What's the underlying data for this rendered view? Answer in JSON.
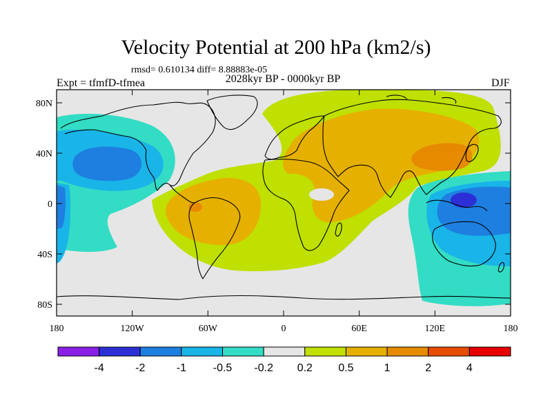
{
  "title": "Velocity Potential at 200 hPa (km2/s)",
  "stats_line": "rmsd= 0.610134 diff= 8.88883e-05",
  "left_label": "Expt = tfmfD-tfmea",
  "center_label": "2028kyr BP - 0000kyr BP",
  "right_label": "DJF",
  "x_ticks": [
    "180",
    "120W",
    "60W",
    "0",
    "60E",
    "120E",
    "180"
  ],
  "y_ticks": [
    "80N",
    "40N",
    "0",
    "40S",
    "80S"
  ],
  "colorbar": {
    "labels": [
      "-4",
      "-2",
      "-1",
      "-0.5",
      "-0.2",
      "0.2",
      "0.5",
      "1",
      "2",
      "4"
    ],
    "colors": [
      "#8a1fe6",
      "#2d2fd6",
      "#1e7fe0",
      "#19b4e8",
      "#33dcc4",
      "#e6e6e6",
      "#bfe000",
      "#e6b000",
      "#e68a00",
      "#e64d00",
      "#e60000"
    ]
  },
  "colors": {
    "land_line": "#000000",
    "neutral": "#e6e6e6",
    "pos_weak": "#bfe000",
    "pos_mid": "#e6b000",
    "pos_strong": "#e68a00",
    "neg_weak": "#33dcc4",
    "neg_mid": "#19b4e8",
    "neg_strong": "#1e7fe0",
    "neg_core": "#2d2fd6"
  }
}
